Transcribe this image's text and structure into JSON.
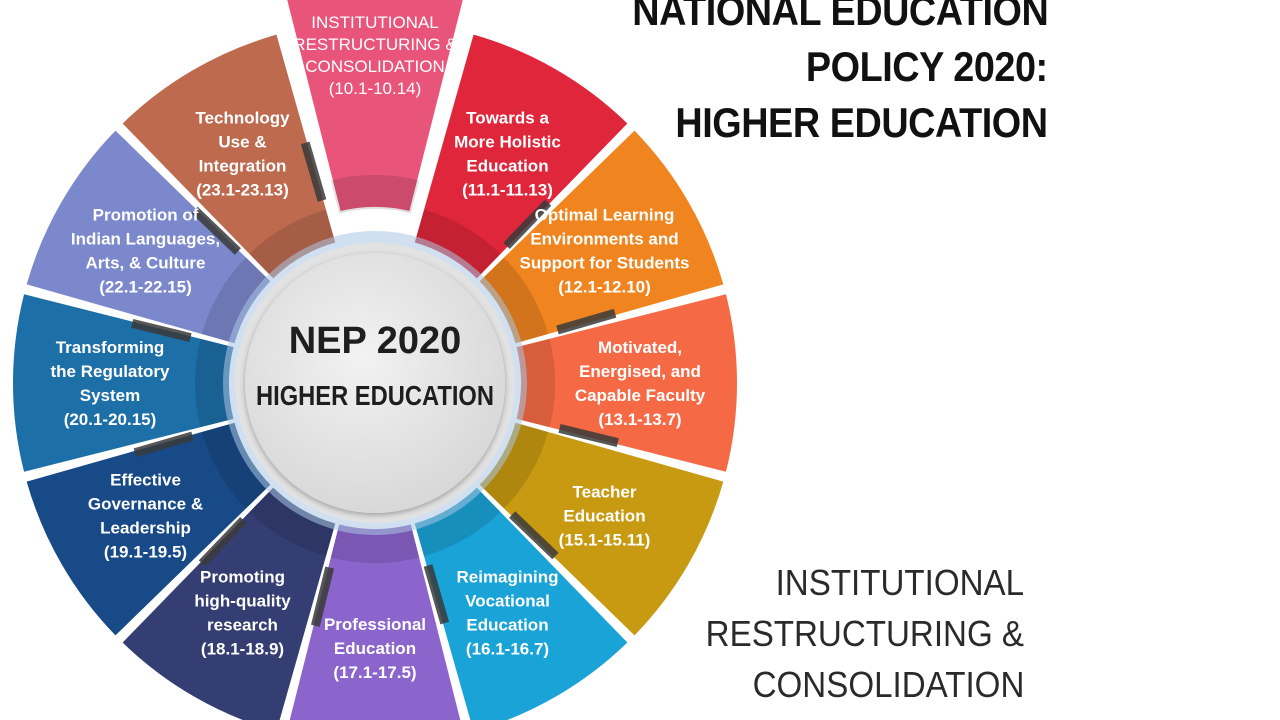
{
  "header": {
    "title_lines": [
      "NATIONAL EDUCATION",
      "POLICY 2020:",
      "HIGHER EDUCATION"
    ]
  },
  "hub": {
    "title": "NEP 2020",
    "subtitle": "HIGHER EDUCATION"
  },
  "focus_panel": {
    "lines": [
      "INSTITUTIONAL",
      "RESTRUCTURING &",
      "CONSOLIDATION"
    ]
  },
  "segments": [
    {
      "id": "institutional-restructuring",
      "lines": [
        "INSTITUTIONAL",
        "RESTRUCTURING &",
        "CONSOLIDATION",
        "(10.1-10.14)"
      ],
      "color": "#e9557a",
      "highlighted": true
    },
    {
      "id": "holistic-education",
      "lines": [
        "Towards a",
        "More Holistic",
        "Education",
        "(11.1-11.13)"
      ],
      "color": "#e0263a",
      "highlighted": false
    },
    {
      "id": "learning-environments",
      "lines": [
        "Optimal Learning",
        "Environments and",
        "Support for Students",
        "(12.1-12.10)"
      ],
      "color": "#f0851f",
      "highlighted": false
    },
    {
      "id": "capable-faculty",
      "lines": [
        "Motivated,",
        "Energised, and",
        "Capable Faculty",
        "(13.1-13.7)"
      ],
      "color": "#f56a45",
      "highlighted": false
    },
    {
      "id": "teacher-education",
      "lines": [
        "Teacher",
        "Education",
        "(15.1-15.11)"
      ],
      "color": "#c89a12",
      "highlighted": false
    },
    {
      "id": "vocational-education",
      "lines": [
        "Reimagining",
        "Vocational",
        "Education",
        "(16.1-16.7)"
      ],
      "color": "#1aa3d6",
      "highlighted": false
    },
    {
      "id": "professional-education",
      "lines": [
        "Professional",
        "Education",
        "(17.1-17.5)"
      ],
      "color": "#8b64cc",
      "highlighted": false
    },
    {
      "id": "high-quality-research",
      "lines": [
        "Promoting",
        "high-quality",
        "research",
        "(18.1-18.9)"
      ],
      "color": "#343e72",
      "highlighted": false
    },
    {
      "id": "governance-leadership",
      "lines": [
        "Effective",
        "Governance &",
        "Leadership",
        "(19.1-19.5)"
      ],
      "color": "#184a88",
      "highlighted": false
    },
    {
      "id": "regulatory-system",
      "lines": [
        "Transforming",
        "the Regulatory",
        "System",
        "(20.1-20.15)"
      ],
      "color": "#1d6fa8",
      "highlighted": false
    },
    {
      "id": "indian-languages",
      "lines": [
        "Promotion of",
        "Indian Languages,",
        "Arts, & Culture",
        "(22.1-22.15)"
      ],
      "color": "#7b88cc",
      "highlighted": false
    },
    {
      "id": "technology-use",
      "lines": [
        "Technology",
        "Use &",
        "Integration",
        "(23.1-23.13)"
      ],
      "color": "#bd6a4f",
      "highlighted": false
    }
  ]
}
